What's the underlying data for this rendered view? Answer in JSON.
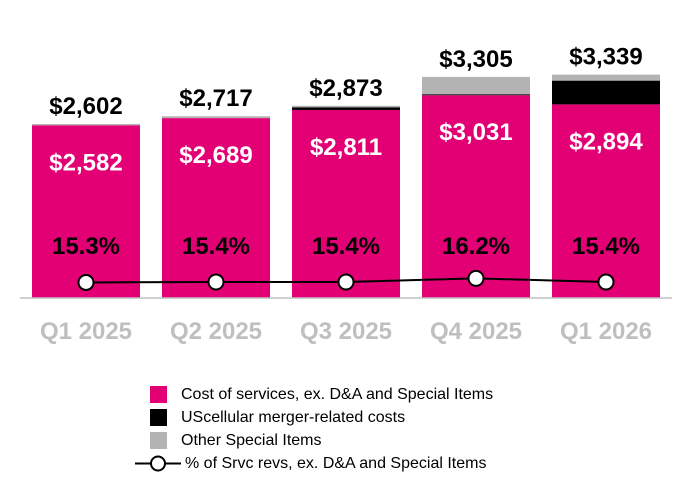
{
  "chart_data": {
    "type": "bar",
    "stacked": true,
    "categories": [
      "Q1 2025",
      "Q2 2025",
      "Q3 2025",
      "Q4 2025",
      "Q1 2026"
    ],
    "series": [
      {
        "name": "Cost of services, ex. D&A and Special Items",
        "color": "#e20074",
        "values": [
          2582,
          2689,
          2811,
          3031,
          2894
        ],
        "labels": [
          "$2,582",
          "$2,689",
          "$2,811",
          "$3,031",
          "$2,894"
        ]
      },
      {
        "name": "UScellular merger-related costs",
        "color": "#000000",
        "values": [
          0,
          0,
          40,
          15,
          355
        ]
      },
      {
        "name": "Other Special Items",
        "color": "#b3b3b3",
        "values": [
          20,
          28,
          22,
          259,
          90
        ]
      }
    ],
    "totals": [
      2602,
      2717,
      2873,
      3305,
      3339
    ],
    "total_labels": [
      "$2,602",
      "$2,717",
      "$2,873",
      "$3,305",
      "$3,339"
    ],
    "line_series": {
      "name": "% of Srvc revs, ex. D&A and Special Items",
      "values": [
        15.3,
        15.4,
        15.4,
        16.2,
        15.4
      ],
      "labels": [
        "15.3%",
        "15.4%",
        "15.4%",
        "16.2%",
        "15.4%"
      ]
    },
    "ylim": [
      0,
      3400
    ],
    "legend_position": "bottom"
  }
}
